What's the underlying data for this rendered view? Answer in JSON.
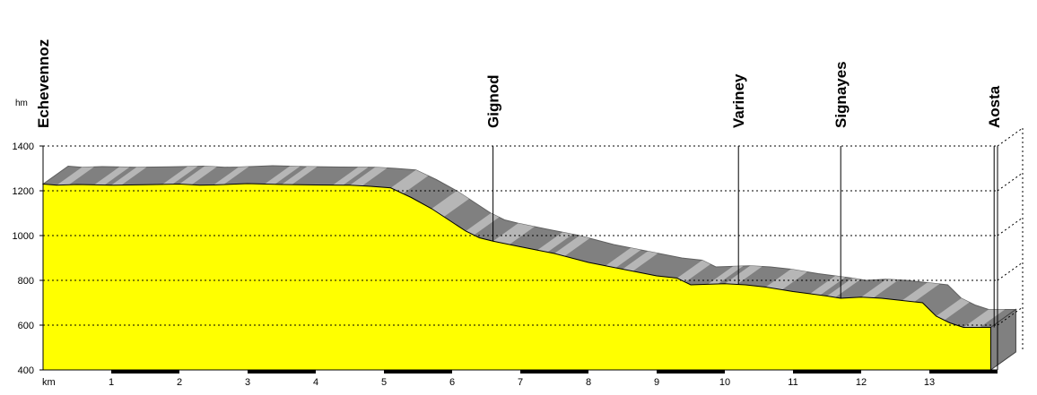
{
  "chart_data": {
    "type": "area",
    "title": "",
    "xlabel": "km",
    "ylabel": "hm",
    "xlim": [
      0,
      14
    ],
    "ylim": [
      400,
      1400
    ],
    "grid": "horizontal-dotted",
    "x_ticks": [
      1,
      2,
      3,
      4,
      5,
      6,
      7,
      8,
      9,
      10,
      11,
      12,
      13
    ],
    "y_ticks": [
      400,
      600,
      800,
      1000,
      1200,
      1400
    ],
    "colors": {
      "fill": "#ffff00",
      "relief_dark": "#808080",
      "relief_light": "#c0c0c0",
      "side": "#808080"
    },
    "series": [
      {
        "x": [
          0,
          0.2,
          0.5,
          1.0,
          1.5,
          2.0,
          2.3,
          2.5,
          3.0,
          3.5,
          4.0,
          4.5,
          4.8,
          5.1,
          5.4,
          5.7,
          6.0,
          6.2,
          6.4,
          6.6,
          7.0,
          7.5,
          8.0,
          8.5,
          9.0,
          9.3,
          9.5,
          10.0,
          10.3,
          10.6,
          11.0,
          11.5,
          11.7,
          12.0,
          12.3,
          12.6,
          12.9,
          13.1,
          13.3,
          13.5,
          13.9
        ],
        "y": [
          1230,
          1225,
          1228,
          1225,
          1227,
          1230,
          1225,
          1226,
          1232,
          1228,
          1226,
          1225,
          1220,
          1213,
          1170,
          1120,
          1060,
          1020,
          990,
          975,
          950,
          920,
          880,
          850,
          820,
          810,
          780,
          785,
          780,
          770,
          750,
          730,
          720,
          725,
          720,
          710,
          700,
          640,
          610,
          590,
          590
        ]
      }
    ],
    "waypoints": [
      {
        "name": "Echevennoz",
        "km": 0
      },
      {
        "name": "Gignod",
        "km": 6.6
      },
      {
        "name": "Variney",
        "km": 10.2
      },
      {
        "name": "Signayes",
        "km": 11.7
      },
      {
        "name": "Aosta",
        "km": 13.95
      }
    ]
  }
}
